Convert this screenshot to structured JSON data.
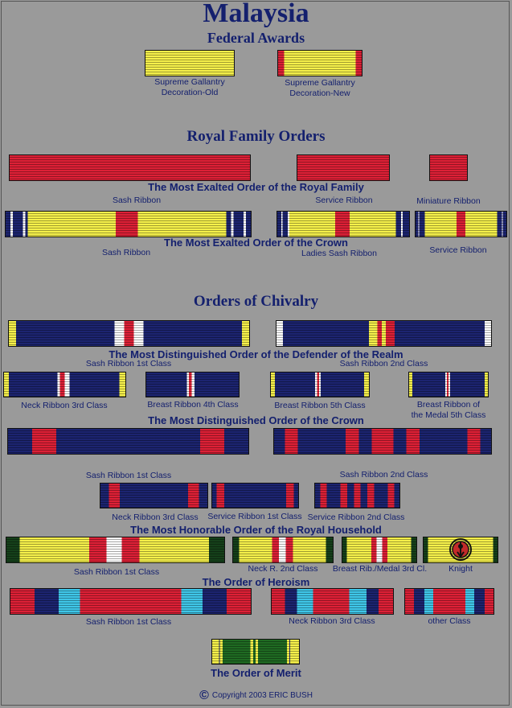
{
  "page": {
    "title": "Malaysia",
    "subtitle": "Federal Awards"
  },
  "sections": {
    "royal_family": "Royal Family Orders",
    "chivalry": "Orders of Chivalry"
  },
  "orders": {
    "royal_family": "The Most Exalted Order of the Royal Family",
    "crown": "The Most Exalted Order of the Crown",
    "defender": "The Most Distinguished Order of the Defender of the Realm",
    "dist_crown": "The Most Distinguished Order of the Crown",
    "household": "The Most Honorable Order of the Royal Household",
    "heroism": "The Order of Heroism",
    "merit": "The Order of Merit"
  },
  "captions": {
    "sgd_old": [
      "Supreme Gallantry",
      "Decoration-Old"
    ],
    "sgd_new": [
      "Supreme Gallantry",
      "Decoration-New"
    ],
    "rf_sash": "Sash Ribbon",
    "rf_service": "Service Ribbon",
    "rf_mini": "Miniature Ribbon",
    "cr_sash": "Sash Ribbon",
    "cr_ladies": "Ladies Sash Ribbon",
    "cr_service": "Service Ribbon",
    "def_sash1": "Sash Ribbon 1st Class",
    "def_sash2": "Sash Ribbon 2nd Class",
    "def_neck3": "Neck Ribbon 3rd Class",
    "def_breast4": "Breast Ribbon 4th Class",
    "def_breast5": "Breast Ribbon 5th Class",
    "def_medal5": [
      "Breast Ribbon of",
      "the Medal 5th Class"
    ],
    "dc_sash1": "Sash Ribbon 1st Class",
    "dc_sash2": "Sash Ribbon 2nd Class",
    "dc_neck3": "Neck Ribbon 3rd Class",
    "dc_service1": "Service Ribbon 1st Class",
    "dc_service2": "Service Ribbon 2nd Class",
    "hh_sash1": "Sash Ribbon 1st Class",
    "hh_neck2": "Neck R. 2nd Class",
    "hh_breast3": "Breast Rib./Medal 3rd Cl.",
    "hh_knight": "Knight",
    "her_sash1": "Sash Ribbon 1st Class",
    "her_neck3": "Neck Ribbon 3rd Class",
    "her_other": "other Class"
  },
  "copyright": {
    "symbol": "©",
    "text": "Copyright 2003 ERIC BUSH"
  },
  "colors": {
    "background": "#9a9a9a",
    "text": "#14206e",
    "navy": "#1c2470",
    "yellow": "#f5f04a",
    "red": "#dd2036",
    "green": "#1f6a22",
    "white": "#ffffff",
    "light_blue": "#3fc6e8",
    "dark_green": "#15401a"
  }
}
